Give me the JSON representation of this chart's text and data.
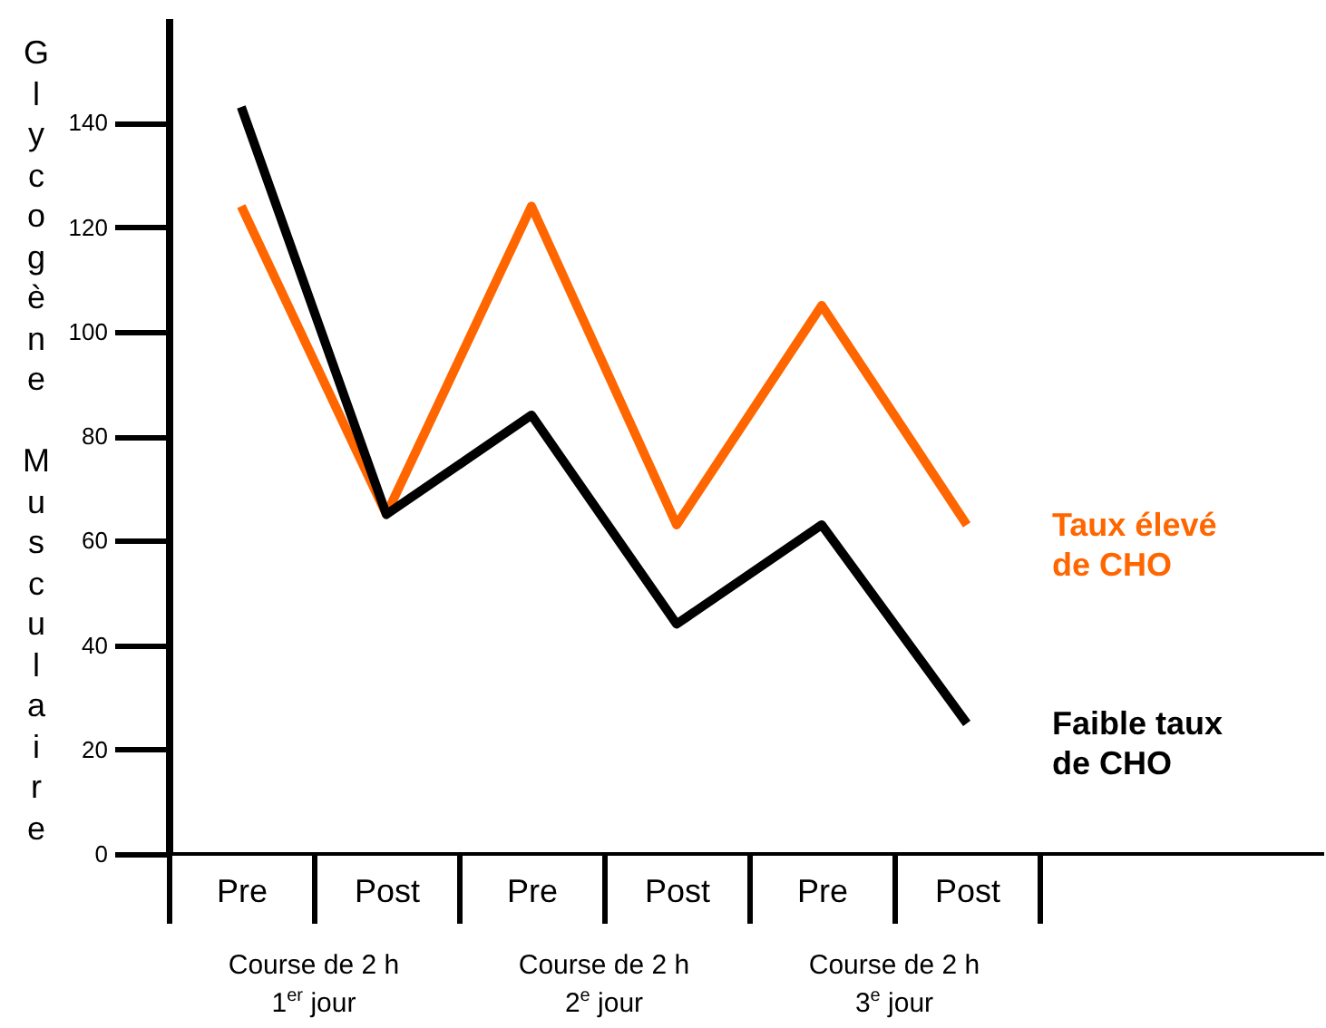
{
  "chart_data": {
    "type": "line",
    "ylabel": "Glycogène Musculaire",
    "categories": [
      "Pre",
      "Post",
      "Pre",
      "Post",
      "Pre",
      "Post"
    ],
    "series": [
      {
        "name": "Taux élevé de CHO",
        "color": "#ff6600",
        "values": [
          124,
          65,
          124,
          63,
          105,
          63
        ]
      },
      {
        "name": "Faible taux de CHO",
        "color": "#000000",
        "values": [
          143,
          65,
          84,
          44,
          63,
          25
        ]
      }
    ],
    "ylim": [
      0,
      160
    ],
    "yticks": [
      0,
      20,
      40,
      60,
      80,
      100,
      120,
      140
    ],
    "annotations": [
      "Course de 2 h\n1$^{er}$ jour",
      "Course de 2 h\n2$^{e}$ jour",
      "Course de 2 h\n3$^{e}$ jour"
    ],
    "grid": false,
    "marker": "none",
    "line_style": "solid"
  }
}
